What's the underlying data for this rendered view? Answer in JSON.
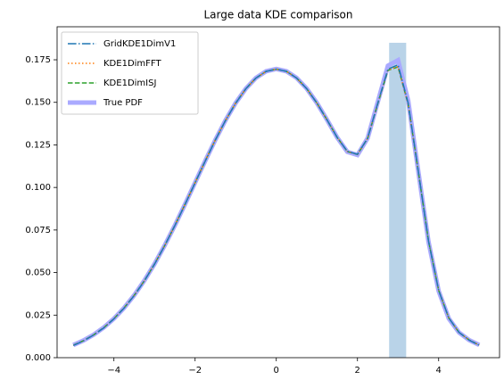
{
  "chart_data": {
    "type": "line",
    "title": "Large data KDE comparison",
    "x": [
      -5,
      -4.75,
      -4.5,
      -4.25,
      -4,
      -3.75,
      -3.5,
      -3.25,
      -3,
      -2.75,
      -2.5,
      -2.25,
      -2,
      -1.75,
      -1.5,
      -1.25,
      -1,
      -0.75,
      -0.5,
      -0.25,
      0,
      0.25,
      0.5,
      0.75,
      1,
      1.25,
      1.5,
      1.75,
      2,
      2.25,
      2.5,
      2.75,
      3,
      3.25,
      3.5,
      3.75,
      4,
      4.25,
      4.5,
      4.75,
      5
    ],
    "series": [
      {
        "name": "GridKDE1DimV1",
        "color": "#1f77b4",
        "style": "dashdot",
        "linewidth": 1.5,
        "values": [
          0.0072,
          0.0099,
          0.0133,
          0.0175,
          0.0228,
          0.0291,
          0.0365,
          0.0451,
          0.0549,
          0.0658,
          0.0775,
          0.0899,
          0.1027,
          0.1155,
          0.1279,
          0.1394,
          0.1495,
          0.158,
          0.1643,
          0.1682,
          0.1695,
          0.1682,
          0.1643,
          0.158,
          0.1496,
          0.1397,
          0.1294,
          0.1212,
          0.1195,
          0.1289,
          0.1495,
          0.1695,
          0.172,
          0.1495,
          0.1093,
          0.0685,
          0.0395,
          0.0233,
          0.0149,
          0.0103,
          0.0073
        ]
      },
      {
        "name": "KDE1DimFFT",
        "color": "#ff7f0e",
        "style": "dotted",
        "linewidth": 1.5,
        "values": [
          0.0073,
          0.01,
          0.0134,
          0.0176,
          0.0229,
          0.0292,
          0.0366,
          0.0452,
          0.055,
          0.0658,
          0.0776,
          0.09,
          0.1028,
          0.1156,
          0.128,
          0.1394,
          0.1496,
          0.158,
          0.1643,
          0.1682,
          0.1695,
          0.1682,
          0.1643,
          0.158,
          0.1496,
          0.1397,
          0.1294,
          0.1211,
          0.1194,
          0.1288,
          0.1493,
          0.169,
          0.171,
          0.149,
          0.1092,
          0.0686,
          0.0396,
          0.0233,
          0.0149,
          0.0104,
          0.0074
        ]
      },
      {
        "name": "KDE1DimISJ",
        "color": "#2ca02c",
        "style": "dashed",
        "linewidth": 1.5,
        "values": [
          0.0073,
          0.01,
          0.0134,
          0.0176,
          0.0229,
          0.0292,
          0.0366,
          0.0452,
          0.055,
          0.0658,
          0.0776,
          0.09,
          0.1028,
          0.1156,
          0.128,
          0.1394,
          0.1496,
          0.158,
          0.1643,
          0.1682,
          0.1695,
          0.1682,
          0.1643,
          0.158,
          0.1496,
          0.1397,
          0.1294,
          0.1211,
          0.1194,
          0.1288,
          0.1492,
          0.1688,
          0.1708,
          0.1489,
          0.1092,
          0.0686,
          0.0396,
          0.0233,
          0.0149,
          0.0104,
          0.0074
        ]
      },
      {
        "name": "True PDF",
        "color": "#aaaaff",
        "style": "solid",
        "linewidth": 5,
        "values": [
          0.00745,
          0.0101,
          0.01349,
          0.01773,
          0.02295,
          0.02924,
          0.03668,
          0.04529,
          0.05505,
          0.06589,
          0.07764,
          0.09006,
          0.10286,
          0.11565,
          0.12801,
          0.13949,
          0.14965,
          0.15807,
          0.16436,
          0.16826,
          0.16958,
          0.16826,
          0.16436,
          0.15807,
          0.14965,
          0.13975,
          0.12934,
          0.12091,
          0.11906,
          0.12891,
          0.15023,
          0.17151,
          0.17473,
          0.15091,
          0.10927,
          0.06809,
          0.03915,
          0.02299,
          0.01482,
          0.01036,
          0.00745
        ]
      }
    ],
    "span": {
      "x": [
        2.78,
        3.2
      ],
      "height": 0.185,
      "color": "#b9d3e8"
    },
    "xlim": [
      -5.4,
      5.5
    ],
    "ylim": [
      0,
      0.1944
    ],
    "xticks": [
      {
        "value": -4,
        "label": "−4"
      },
      {
        "value": -2,
        "label": "−2"
      },
      0,
      2,
      4
    ],
    "yticks": [
      {
        "value": 0,
        "label": "0.000"
      },
      {
        "value": 0.025,
        "label": "0.025"
      },
      {
        "value": 0.05,
        "label": "0.050"
      },
      {
        "value": 0.075,
        "label": "0.075"
      },
      {
        "value": 0.1,
        "label": "0.100"
      },
      {
        "value": 0.125,
        "label": "0.125"
      },
      {
        "value": 0.15,
        "label": "0.150"
      },
      {
        "value": 0.175,
        "label": "0.175"
      }
    ],
    "legend": "upper left"
  }
}
